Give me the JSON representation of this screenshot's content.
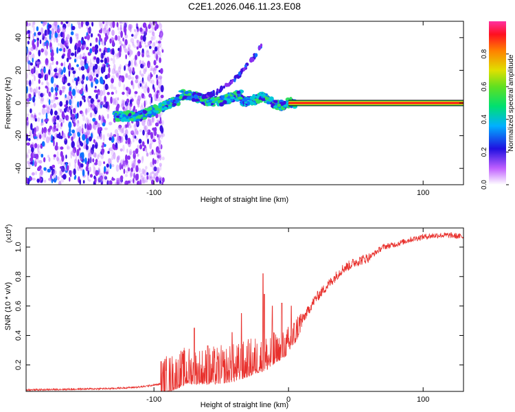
{
  "title": "C2E1.2026.046.11.23.E08",
  "chart_data": [
    {
      "type": "heatmap",
      "name": "spectrogram",
      "xlabel": "Height of straight line (km)",
      "ylabel": "Frequency (Hz)",
      "xlim": [
        -195,
        130
      ],
      "ylim": [
        -50,
        50
      ],
      "xticks": [
        -100,
        100
      ],
      "yticks": [
        -40,
        -20,
        0,
        20,
        40
      ],
      "line_frequency": 0,
      "line_start": 0,
      "colorbar": {
        "label": "Normalized spectral amplitude",
        "range": [
          0,
          1
        ],
        "ticks": [
          "0.0",
          "0.2",
          "0.4",
          "0.6",
          "0.8"
        ]
      }
    },
    {
      "type": "line",
      "name": "snr",
      "xlabel": "Height of straight line (km)",
      "ylabel": "SNR (10 * v/v)",
      "scale_label": "(x10",
      "scale_exp": "4",
      "xlim": [
        -195,
        130
      ],
      "ylim": [
        0.02,
        1.13
      ],
      "xticks": [
        -100,
        0,
        100
      ],
      "yticks": [
        "0.2",
        "0.4",
        "0.6",
        "0.8",
        "1.0"
      ],
      "color": "#e8302c",
      "envelope": {
        "x": [
          -195,
          -160,
          -130,
          -110,
          -95,
          -85,
          -75,
          -65,
          -55,
          -45,
          -35,
          -25,
          -15,
          -10,
          -5,
          0,
          5,
          10,
          20,
          30,
          40,
          50,
          60,
          70,
          80,
          90,
          100,
          110,
          120,
          130
        ],
        "y": [
          0.03,
          0.035,
          0.04,
          0.05,
          0.07,
          0.1,
          0.14,
          0.14,
          0.14,
          0.15,
          0.17,
          0.21,
          0.24,
          0.27,
          0.29,
          0.33,
          0.4,
          0.5,
          0.65,
          0.75,
          0.85,
          0.9,
          0.93,
          1.0,
          1.02,
          1.05,
          1.07,
          1.08,
          1.08,
          1.07
        ]
      },
      "spikes": [
        {
          "x": -70,
          "y": 0.45
        },
        {
          "x": -60,
          "y": 0.33
        },
        {
          "x": -42,
          "y": 0.42
        },
        {
          "x": -35,
          "y": 0.55
        },
        {
          "x": -19,
          "y": 0.82
        },
        {
          "x": -18,
          "y": 0.68
        },
        {
          "x": -12,
          "y": 0.6
        },
        {
          "x": -5,
          "y": 0.62
        },
        {
          "x": 2,
          "y": 0.6
        }
      ]
    }
  ]
}
